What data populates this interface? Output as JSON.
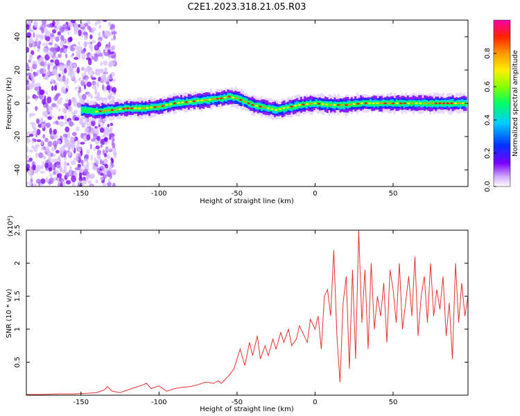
{
  "title": "C2E1.2023.318.21.05.R03",
  "chart_data": [
    {
      "type": "heatmap",
      "title": "",
      "xlabel": "Height of straight line (km)",
      "ylabel": "Frequency (Hz)",
      "xlim": [
        -185,
        98
      ],
      "ylim": [
        -50,
        50
      ],
      "xticks": [
        -150,
        -100,
        -50,
        0,
        50
      ],
      "yticks": [
        -40,
        -20,
        0,
        20,
        40
      ],
      "colorbar": {
        "label": "Normalized spectral amplitude",
        "range": [
          0,
          1
        ],
        "ticks": [
          0.0,
          0.2,
          0.4,
          0.6,
          0.8
        ],
        "colormap": [
          "#ffffff",
          "#7a00ff",
          "#0033ff",
          "#00ccff",
          "#00ff66",
          "#88ff00",
          "#ffee00",
          "#ff9900",
          "#ff2200",
          "#ff00aa"
        ]
      },
      "ridge_center_hz": {
        "x": [
          -150,
          -140,
          -130,
          -120,
          -110,
          -100,
          -90,
          -80,
          -70,
          -60,
          -55,
          -50,
          -45,
          -40,
          -35,
          -30,
          -25,
          -20,
          -10,
          0,
          10,
          20,
          30,
          40,
          50,
          60,
          70,
          80,
          90,
          98
        ],
        "y": [
          -4,
          -5,
          -4,
          -3,
          -3,
          -2,
          0,
          1,
          2,
          3,
          4,
          3,
          1,
          -1,
          -2,
          -3,
          -4,
          -3,
          -1,
          0,
          -1,
          -1,
          0,
          0,
          0,
          0,
          0,
          0,
          0,
          0
        ]
      },
      "noise_region_km": [
        -185,
        -128
      ]
    },
    {
      "type": "line",
      "title": "",
      "xlabel": "Height of straight line (km)",
      "ylabel": "SNR (10 * v/v)",
      "y_multiplier": "(x10⁴)",
      "xlim": [
        -185,
        98
      ],
      "ylim": [
        0,
        2.5
      ],
      "xticks": [
        -150,
        -100,
        -50,
        0,
        50
      ],
      "yticks": [
        0.5,
        1.0,
        1.5,
        2.0,
        2.5
      ],
      "color": "#e8312f",
      "series": [
        {
          "x": [
            -185,
            -175,
            -165,
            -155,
            -145,
            -140,
            -135,
            -133,
            -130,
            -125,
            -120,
            -115,
            -110,
            -108,
            -105,
            -100,
            -95,
            -90,
            -85,
            -80,
            -75,
            -70,
            -65,
            -62,
            -60,
            -55,
            -52,
            -50,
            -48,
            -45,
            -42,
            -40,
            -37,
            -35,
            -32,
            -30,
            -27,
            -25,
            -22,
            -20,
            -17,
            -15,
            -12,
            -10,
            -7,
            -5,
            -3,
            0,
            2,
            4,
            6,
            8,
            10,
            12,
            14,
            16,
            18,
            20,
            22,
            24,
            26,
            28,
            30,
            32,
            34,
            36,
            38,
            40,
            42,
            44,
            46,
            48,
            50,
            52,
            54,
            56,
            58,
            60,
            62,
            64,
            66,
            68,
            70,
            72,
            74,
            76,
            78,
            80,
            82,
            84,
            86,
            88,
            90,
            92,
            94,
            96,
            98
          ],
          "y": [
            0.01,
            0.01,
            0.02,
            0.02,
            0.03,
            0.04,
            0.08,
            0.13,
            0.06,
            0.04,
            0.08,
            0.12,
            0.16,
            0.18,
            0.1,
            0.14,
            0.06,
            0.1,
            0.12,
            0.13,
            0.16,
            0.2,
            0.18,
            0.22,
            0.18,
            0.3,
            0.4,
            0.55,
            0.7,
            0.45,
            0.8,
            0.6,
            0.9,
            0.55,
            0.75,
            0.6,
            0.85,
            0.7,
            0.95,
            0.8,
            1.0,
            0.75,
            0.85,
            1.05,
            0.9,
            0.8,
            1.15,
            1.0,
            1.2,
            0.7,
            1.5,
            1.6,
            1.2,
            2.2,
            0.9,
            0.2,
            1.4,
            1.8,
            0.4,
            1.9,
            0.55,
            2.5,
            1.1,
            1.9,
            0.7,
            2.0,
            1.0,
            1.5,
            1.2,
            1.7,
            0.8,
            1.9,
            1.6,
            1.1,
            2.0,
            1.0,
            1.4,
            1.8,
            1.2,
            2.1,
            0.9,
            1.5,
            1.8,
            1.1,
            2.0,
            1.2,
            1.6,
            1.3,
            1.8,
            0.9,
            1.4,
            0.55,
            2.0,
            1.1,
            1.7,
            1.2,
            1.5
          ]
        }
      ]
    }
  ]
}
